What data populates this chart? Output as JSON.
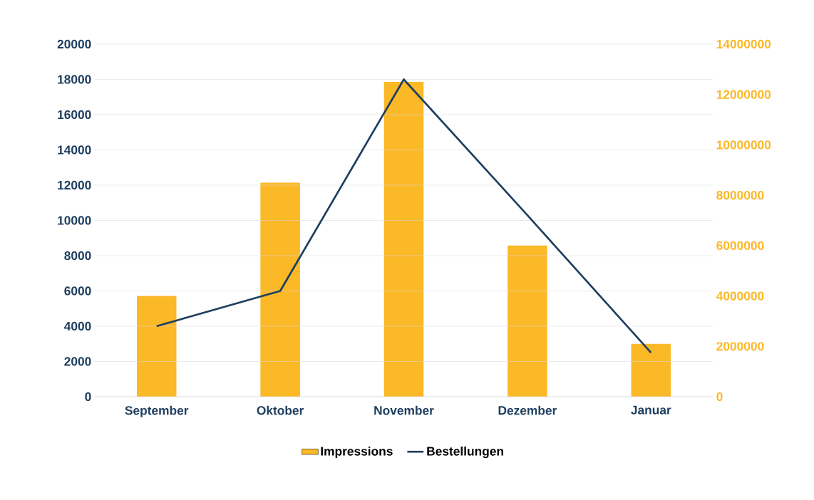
{
  "chart_data": {
    "type": "bar",
    "categories": [
      "September",
      "Oktober",
      "November",
      "Dezember",
      "Januar"
    ],
    "series": [
      {
        "name": "Impressions",
        "axis": "y2",
        "color": "#fbb827",
        "values": [
          4000000,
          8500000,
          12500000,
          6000000,
          2100000
        ]
      },
      {
        "name": "Bestellungen",
        "type": "line",
        "axis": "y",
        "color": "#1f3f5f",
        "values": [
          4000,
          6000,
          18000,
          10300,
          2500
        ]
      }
    ],
    "ylim": [
      0,
      20000
    ],
    "yticks": [
      0,
      2000,
      4000,
      6000,
      8000,
      10000,
      12000,
      14000,
      16000,
      18000,
      20000
    ],
    "y2lim": [
      0,
      14000000
    ],
    "y2ticks": [
      0,
      2000000,
      4000000,
      6000000,
      8000000,
      10000000,
      12000000,
      14000000
    ],
    "grid": "y",
    "legend": "bottom",
    "marker": "none",
    "line_style": "solid"
  }
}
